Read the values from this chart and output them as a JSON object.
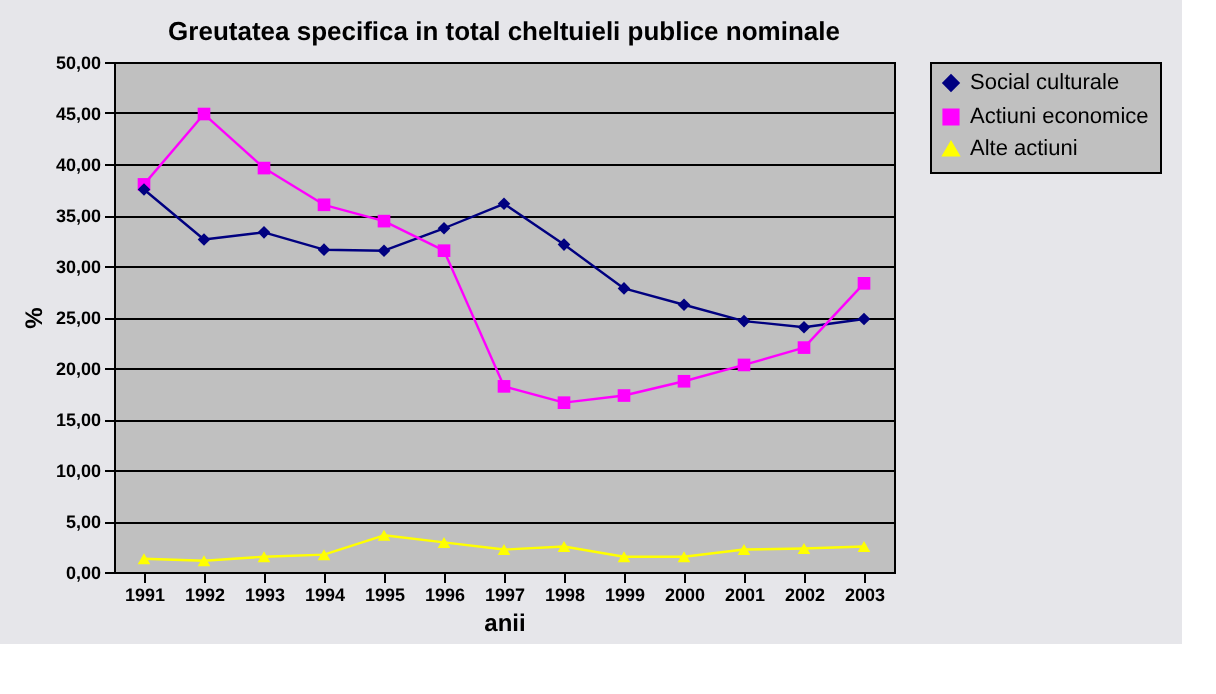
{
  "chart_data": {
    "type": "line",
    "title": "Greutatea specifica in total cheltuieli publice nominale",
    "xlabel": "anii",
    "ylabel": "%",
    "categories": [
      "1991",
      "1992",
      "1993",
      "1994",
      "1995",
      "1996",
      "1997",
      "1998",
      "1999",
      "2000",
      "2001",
      "2002",
      "2003"
    ],
    "series": [
      {
        "name": "Social culturale",
        "color": "#000080",
        "marker": "diamond",
        "values": [
          37.5,
          32.6,
          33.3,
          31.6,
          31.5,
          33.7,
          36.1,
          32.1,
          27.8,
          26.2,
          24.6,
          24.0,
          24.8
        ]
      },
      {
        "name": "Actiuni economice",
        "color": "#ff00ff",
        "marker": "square",
        "values": [
          38.0,
          44.9,
          39.6,
          36.0,
          34.4,
          31.5,
          18.2,
          16.6,
          17.3,
          18.7,
          20.3,
          22.0,
          28.3
        ]
      },
      {
        "name": "Alte actiuni",
        "color": "#ffff00",
        "marker": "triangle",
        "values": [
          1.3,
          1.1,
          1.5,
          1.7,
          3.6,
          2.9,
          2.2,
          2.5,
          1.5,
          1.5,
          2.2,
          2.3,
          2.5
        ]
      }
    ],
    "ylim": [
      0,
      50
    ],
    "yticks": [
      {
        "value": 0,
        "label": "0,00"
      },
      {
        "value": 5,
        "label": "5,00"
      },
      {
        "value": 10,
        "label": "10,00"
      },
      {
        "value": 15,
        "label": "15,00"
      },
      {
        "value": 20,
        "label": "20,00"
      },
      {
        "value": 25,
        "label": "25,00"
      },
      {
        "value": 30,
        "label": "30,00"
      },
      {
        "value": 35,
        "label": "35,00"
      },
      {
        "value": 40,
        "label": "40,00"
      },
      {
        "value": 45,
        "label": "45,00"
      },
      {
        "value": 50,
        "label": "50,00"
      }
    ],
    "grid": "y",
    "legend": "right",
    "line_style": "solid"
  }
}
